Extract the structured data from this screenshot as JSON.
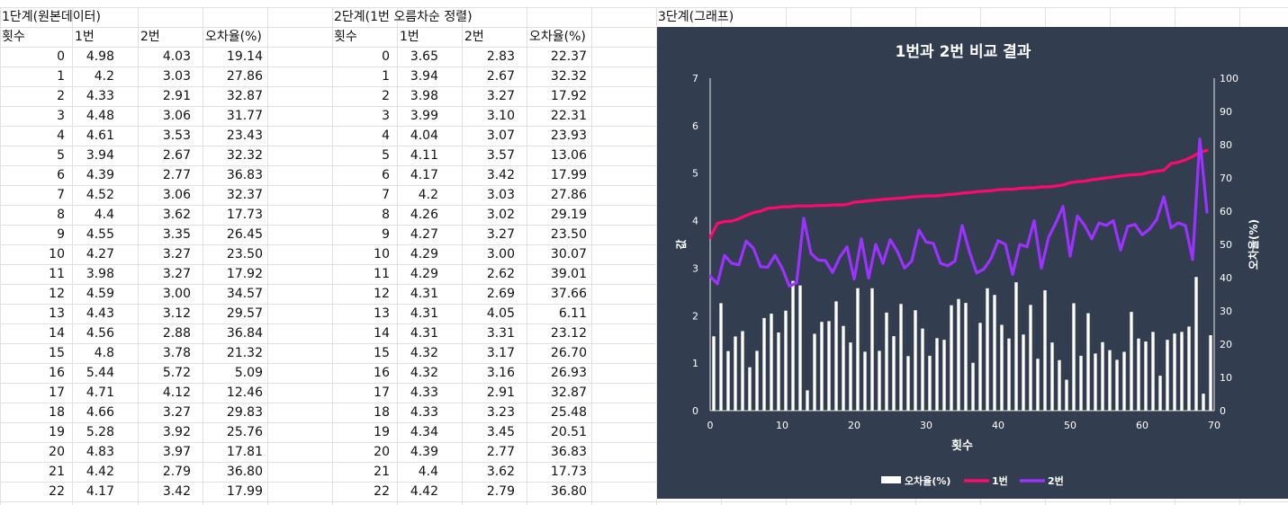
{
  "sheet": {
    "stage1": {
      "title": "1단계(원본데이터)",
      "headers": [
        "횟수",
        "1번",
        "2번",
        "오차율(%)"
      ],
      "rows": [
        [
          "0",
          "4.98",
          "4.03",
          "19.14"
        ],
        [
          "1",
          "4.2",
          "3.03",
          "27.86"
        ],
        [
          "2",
          "4.33",
          "2.91",
          "32.87"
        ],
        [
          "3",
          "4.48",
          "3.06",
          "31.77"
        ],
        [
          "4",
          "4.61",
          "3.53",
          "23.43"
        ],
        [
          "5",
          "3.94",
          "2.67",
          "32.32"
        ],
        [
          "6",
          "4.39",
          "2.77",
          "36.83"
        ],
        [
          "7",
          "4.52",
          "3.06",
          "32.37"
        ],
        [
          "8",
          "4.4",
          "3.62",
          "17.73"
        ],
        [
          "9",
          "4.55",
          "3.35",
          "26.45"
        ],
        [
          "10",
          "4.27",
          "3.27",
          "23.50"
        ],
        [
          "11",
          "3.98",
          "3.27",
          "17.92"
        ],
        [
          "12",
          "4.59",
          "3.00",
          "34.57"
        ],
        [
          "13",
          "4.43",
          "3.12",
          "29.57"
        ],
        [
          "14",
          "4.56",
          "2.88",
          "36.84"
        ],
        [
          "15",
          "4.8",
          "3.78",
          "21.32"
        ],
        [
          "16",
          "5.44",
          "5.72",
          "5.09"
        ],
        [
          "17",
          "4.71",
          "4.12",
          "12.46"
        ],
        [
          "18",
          "4.66",
          "3.27",
          "29.83"
        ],
        [
          "19",
          "5.28",
          "3.92",
          "25.76"
        ],
        [
          "20",
          "4.83",
          "3.97",
          "17.81"
        ],
        [
          "21",
          "4.42",
          "2.79",
          "36.80"
        ],
        [
          "22",
          "4.17",
          "3.42",
          "17.99"
        ]
      ]
    },
    "stage2": {
      "title": "2단계(1번 오름차순 정렬)",
      "headers": [
        "횟수",
        "1번",
        "2번",
        "오차율(%)"
      ],
      "rows": [
        [
          "0",
          "3.65",
          "2.83",
          "22.37"
        ],
        [
          "1",
          "3.94",
          "2.67",
          "32.32"
        ],
        [
          "2",
          "3.98",
          "3.27",
          "17.92"
        ],
        [
          "3",
          "3.99",
          "3.10",
          "22.31"
        ],
        [
          "4",
          "4.04",
          "3.07",
          "23.93"
        ],
        [
          "5",
          "4.11",
          "3.57",
          "13.06"
        ],
        [
          "6",
          "4.17",
          "3.42",
          "17.99"
        ],
        [
          "7",
          "4.2",
          "3.03",
          "27.86"
        ],
        [
          "8",
          "4.26",
          "3.02",
          "29.19"
        ],
        [
          "9",
          "4.27",
          "3.27",
          "23.50"
        ],
        [
          "10",
          "4.29",
          "3.00",
          "30.07"
        ],
        [
          "11",
          "4.29",
          "2.62",
          "39.01"
        ],
        [
          "12",
          "4.31",
          "2.69",
          "37.66"
        ],
        [
          "13",
          "4.31",
          "4.05",
          "6.11"
        ],
        [
          "14",
          "4.31",
          "3.31",
          "23.12"
        ],
        [
          "15",
          "4.32",
          "3.17",
          "26.70"
        ],
        [
          "16",
          "4.32",
          "3.16",
          "26.93"
        ],
        [
          "17",
          "4.33",
          "2.91",
          "32.87"
        ],
        [
          "18",
          "4.33",
          "3.23",
          "25.48"
        ],
        [
          "19",
          "4.34",
          "3.45",
          "20.51"
        ],
        [
          "20",
          "4.39",
          "2.77",
          "36.83"
        ],
        [
          "21",
          "4.4",
          "3.62",
          "17.73"
        ],
        [
          "22",
          "4.42",
          "2.79",
          "36.80"
        ]
      ]
    },
    "stage3": {
      "title": "3단계(그래프)"
    }
  },
  "colors": {
    "chart_bg": "#333d50",
    "series_1": "#ff0a6c",
    "series_2": "#9b32ff",
    "bars": "#ffffff",
    "chart_text": "#ffffff"
  },
  "chart_data": {
    "type": "bar",
    "title": "1번과 2번 비교 결과",
    "xlabel": "횟수",
    "ylabel": "값",
    "y2label": "오차율(%)",
    "xlim": [
      0,
      70
    ],
    "ylim": [
      0,
      7
    ],
    "y2lim": [
      0,
      100
    ],
    "x_ticks": [
      "0",
      "10",
      "20",
      "30",
      "40",
      "50",
      "60",
      "70"
    ],
    "y_ticks": [
      "0",
      "1",
      "2",
      "3",
      "4",
      "5",
      "6",
      "7"
    ],
    "y2_ticks": [
      "0",
      "10",
      "20",
      "30",
      "40",
      "50",
      "60",
      "70",
      "80",
      "90",
      "100"
    ],
    "grid": false,
    "legend_position": "bottom",
    "legend": [
      "오차율(%)",
      "1번",
      "2번"
    ],
    "x": [
      0,
      1,
      2,
      3,
      4,
      5,
      6,
      7,
      8,
      9,
      10,
      11,
      12,
      13,
      14,
      15,
      16,
      17,
      18,
      19,
      20,
      21,
      22,
      23,
      24,
      25,
      26,
      27,
      28,
      29,
      30,
      31,
      32,
      33,
      34,
      35,
      36,
      37,
      38,
      39,
      40,
      41,
      42,
      43,
      44,
      45,
      46,
      47,
      48,
      49,
      50,
      51,
      52,
      53,
      54,
      55,
      56,
      57,
      58,
      59,
      60,
      61,
      62,
      63,
      64,
      65,
      66,
      67,
      68,
      69
    ],
    "series": [
      {
        "name": "오차율(%)",
        "chart": "bar",
        "axis": "right",
        "values": [
          22.37,
          32.32,
          17.92,
          22.31,
          23.93,
          13.06,
          17.99,
          27.86,
          29.19,
          23.5,
          30.07,
          39.01,
          37.66,
          6.11,
          23.12,
          26.7,
          26.93,
          32.87,
          25.48,
          20.51,
          36.83,
          17.73,
          36.8,
          17.99,
          29.5,
          22.4,
          32.1,
          16.4,
          30.2,
          24.7,
          16.5,
          21.8,
          21.3,
          31.7,
          33.6,
          32.4,
          14.4,
          26.4,
          36.8,
          34.8,
          25.8,
          21.7,
          38.6,
          22.9,
          31.8,
          15.6,
          36.2,
          20.5,
          15.2,
          9.3,
          32.3,
          16.5,
          29.3,
          17.2,
          20.6,
          18.2,
          15.3,
          17.7,
          29.7,
          21.7,
          20.8,
          23.7,
          10.5,
          21.3,
          23.2,
          23.7,
          25.3,
          40.2,
          5.1,
          22.7
        ]
      },
      {
        "name": "1번",
        "chart": "line",
        "axis": "left",
        "values": [
          3.65,
          3.94,
          3.98,
          3.99,
          4.04,
          4.11,
          4.17,
          4.2,
          4.26,
          4.27,
          4.29,
          4.29,
          4.31,
          4.31,
          4.31,
          4.32,
          4.32,
          4.33,
          4.33,
          4.34,
          4.39,
          4.4,
          4.42,
          4.43,
          4.45,
          4.46,
          4.47,
          4.48,
          4.5,
          4.51,
          4.52,
          4.52,
          4.53,
          4.55,
          4.56,
          4.58,
          4.59,
          4.61,
          4.62,
          4.63,
          4.65,
          4.66,
          4.66,
          4.68,
          4.69,
          4.69,
          4.71,
          4.71,
          4.73,
          4.75,
          4.8,
          4.82,
          4.83,
          4.86,
          4.88,
          4.9,
          4.92,
          4.94,
          4.96,
          4.97,
          4.98,
          5.02,
          5.04,
          5.06,
          5.2,
          5.23,
          5.28,
          5.35,
          5.44,
          5.48
        ]
      },
      {
        "name": "2번",
        "chart": "line",
        "axis": "left",
        "values": [
          2.83,
          2.67,
          3.27,
          3.1,
          3.07,
          3.57,
          3.42,
          3.03,
          3.02,
          3.27,
          3.0,
          2.62,
          2.69,
          4.05,
          3.31,
          3.17,
          3.16,
          2.91,
          3.23,
          3.45,
          2.77,
          3.62,
          2.79,
          3.5,
          3.1,
          3.6,
          3.35,
          3.0,
          3.15,
          3.8,
          3.55,
          3.52,
          3.1,
          3.05,
          3.15,
          3.9,
          3.35,
          2.9,
          2.98,
          3.2,
          3.58,
          3.5,
          2.87,
          3.5,
          3.45,
          4.0,
          3.0,
          3.65,
          3.95,
          4.3,
          3.25,
          4.1,
          3.9,
          3.62,
          3.95,
          3.9,
          4.0,
          3.38,
          3.88,
          3.92,
          3.7,
          3.82,
          4.02,
          4.5,
          3.85,
          3.95,
          3.9,
          3.18,
          5.72,
          4.18
        ]
      }
    ]
  }
}
